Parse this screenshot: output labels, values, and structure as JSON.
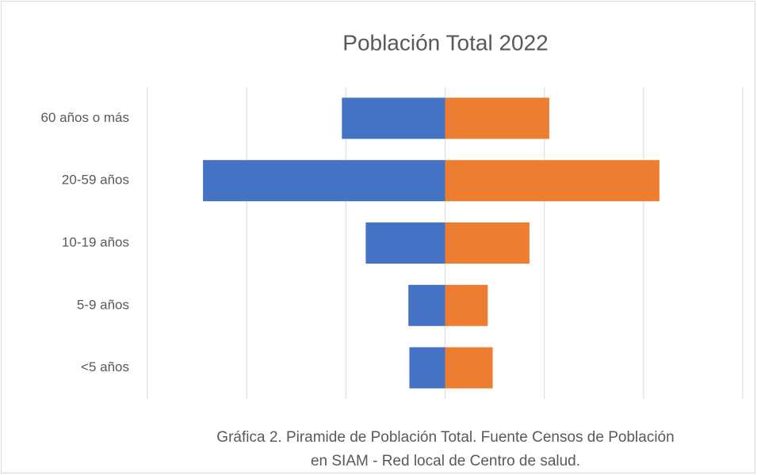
{
  "chart_data": {
    "type": "pyramid",
    "title": "Población Total 2022",
    "categories": [
      "60 años o más",
      "20-59 años",
      "10-19 años",
      "5-9 años",
      "<5 años"
    ],
    "series": [
      {
        "color": "#4472c4",
        "values": [
          -1.04,
          -2.44,
          -0.8,
          -0.37,
          -0.36
        ]
      },
      {
        "color": "#ed7d31",
        "values": [
          1.05,
          2.16,
          0.85,
          0.43,
          0.48
        ]
      }
    ],
    "xlim": [
      -3,
      3
    ],
    "xticks": [
      -3,
      -2,
      -1,
      0,
      1,
      2,
      3
    ],
    "grid": true,
    "caption": "Gráfica 2. Piramide de Población Total. Fuente Censos de Población en SIAM - Red local de Centro de salud."
  }
}
